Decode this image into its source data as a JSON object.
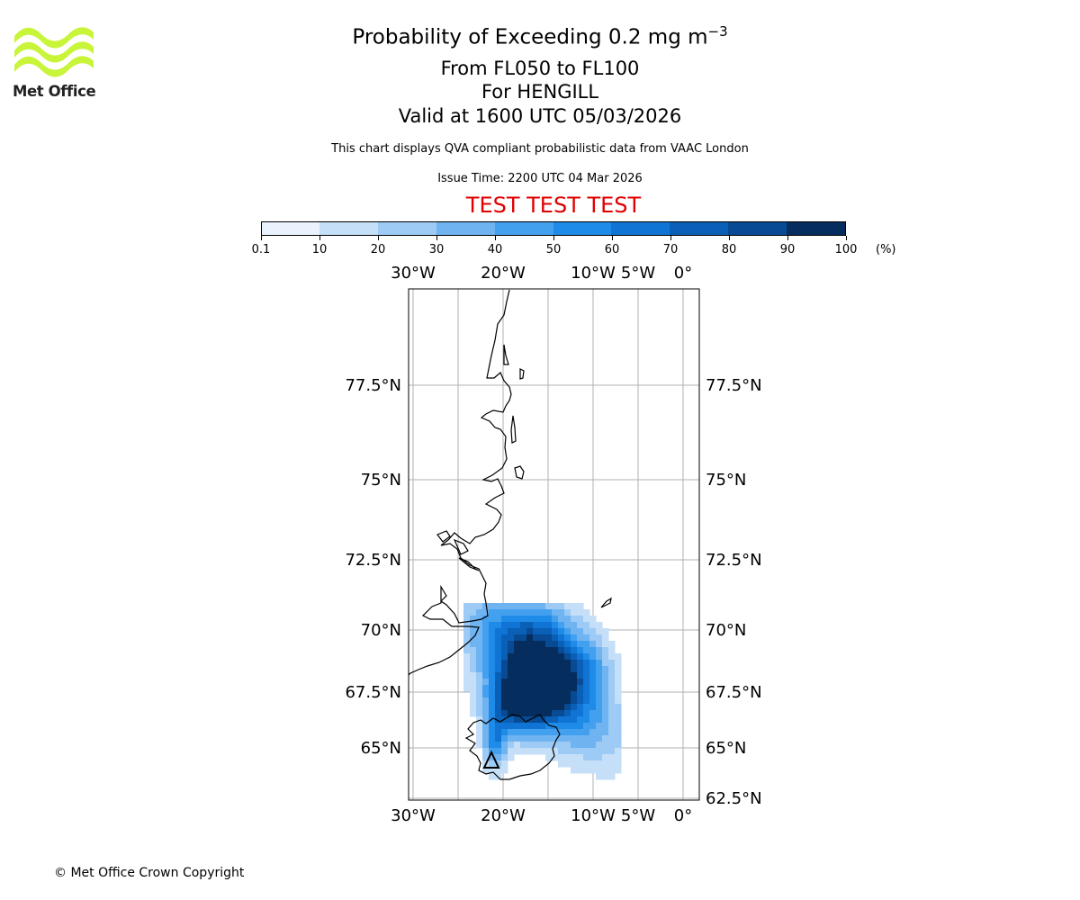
{
  "header": {
    "title_main": "Probability of Exceeding 0.2 mg m",
    "title_sup": "−3",
    "flight_levels": "From FL050 to FL100",
    "volcano": "For HENGILL",
    "valid_time": "Valid at 1600 UTC 05/03/2026",
    "description": "This chart displays QVA compliant probabilistic data from VAAC London",
    "issue_time": "Issue Time: 2200 UTC 04 Mar 2026",
    "test_banner": "TEST TEST TEST"
  },
  "logo": {
    "text": "Met Office",
    "color": "#c8f53a"
  },
  "colorbar": {
    "ticks": [
      "0.1",
      "10",
      "20",
      "30",
      "40",
      "50",
      "60",
      "70",
      "80",
      "90",
      "100"
    ],
    "unit": "(%)",
    "colors": [
      "#eaf3fd",
      "#c5dff8",
      "#9ecbf5",
      "#6fb3f1",
      "#43a0ef",
      "#1e8be8",
      "#0f74d4",
      "#0a5fb6",
      "#084a93",
      "#052d5e"
    ]
  },
  "map": {
    "lon_labels": [
      "30°W",
      "20°W",
      "10°W",
      "5°W",
      "0°"
    ],
    "lat_labels_left": [
      "77.5°N",
      "75°N",
      "72.5°N",
      "70°N",
      "67.5°N",
      "65°N"
    ],
    "lat_labels_right": [
      "77.5°N",
      "75°N",
      "72.5°N",
      "70°N",
      "67.5°N",
      "65°N",
      "62.5°N"
    ],
    "lon_values": [
      -30,
      -20,
      -10,
      -5,
      0
    ],
    "lat_values": [
      77.5,
      75,
      72.5,
      70,
      67.5,
      65,
      62.5
    ],
    "volcano_marker": "triangle",
    "volcano_lat": 64.05,
    "volcano_lon": -21.3
  },
  "footer": {
    "copyright": "© Met Office Crown Copyright"
  }
}
